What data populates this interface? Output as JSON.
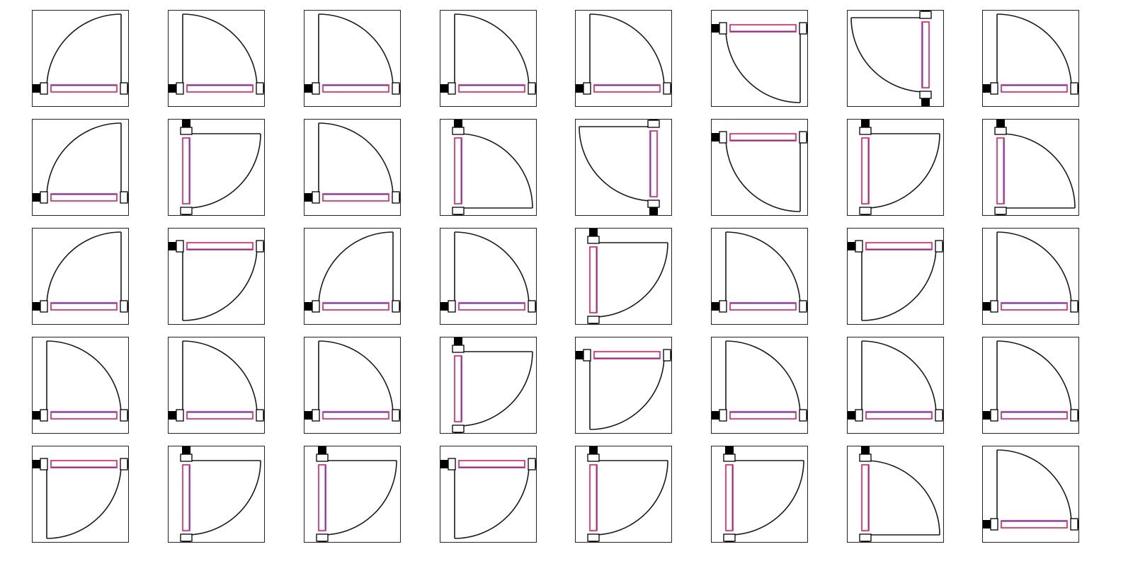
{
  "colors": {
    "background": "#ffffff",
    "frame": "#222222",
    "arc": "#1a1a1a",
    "panel_outer": "#e8185a",
    "panel_inner": "#3a3ad8",
    "jamb_fill": "#ffffff",
    "wall": "#000000"
  },
  "tiles": [
    {
      "icon": "door-swing-icon",
      "panel_edge": "bottom",
      "hinge_side": "right"
    },
    {
      "icon": "door-swing-icon",
      "panel_edge": "bottom",
      "hinge_side": "left"
    },
    {
      "icon": "door-swing-icon",
      "panel_edge": "bottom",
      "hinge_side": "left"
    },
    {
      "icon": "door-swing-icon",
      "panel_edge": "bottom",
      "hinge_side": "left"
    },
    {
      "icon": "door-swing-icon",
      "panel_edge": "bottom",
      "hinge_side": "left"
    },
    {
      "icon": "door-swing-icon",
      "panel_edge": "top",
      "hinge_side": "right"
    },
    {
      "icon": "door-swing-icon",
      "panel_edge": "left",
      "hinge_side": "top"
    },
    {
      "icon": "door-swing-icon",
      "panel_edge": "bottom",
      "hinge_side": "left"
    },
    {
      "icon": "door-swing-icon",
      "panel_edge": "bottom",
      "hinge_side": "right"
    },
    {
      "icon": "door-swing-icon",
      "panel_edge": "right",
      "hinge_side": "top"
    },
    {
      "icon": "door-swing-icon",
      "panel_edge": "bottom",
      "hinge_side": "left"
    },
    {
      "icon": "door-swing-icon",
      "panel_edge": "right",
      "hinge_side": "bottom"
    },
    {
      "icon": "door-swing-icon",
      "panel_edge": "left",
      "hinge_side": "top"
    },
    {
      "icon": "door-swing-icon",
      "panel_edge": "top",
      "hinge_side": "right"
    },
    {
      "icon": "door-swing-icon",
      "panel_edge": "right",
      "hinge_side": "top"
    },
    {
      "icon": "door-swing-icon",
      "panel_edge": "right",
      "hinge_side": "bottom"
    },
    {
      "icon": "door-swing-icon",
      "panel_edge": "bottom",
      "hinge_side": "right"
    },
    {
      "icon": "door-swing-icon",
      "panel_edge": "top",
      "hinge_side": "left"
    },
    {
      "icon": "door-swing-icon",
      "panel_edge": "bottom",
      "hinge_side": "right"
    },
    {
      "icon": "door-swing-icon",
      "panel_edge": "bottom",
      "hinge_side": "left"
    },
    {
      "icon": "door-swing-icon",
      "panel_edge": "right",
      "hinge_side": "top"
    },
    {
      "icon": "door-swing-icon",
      "panel_edge": "bottom",
      "hinge_side": "left"
    },
    {
      "icon": "door-swing-icon",
      "panel_edge": "top",
      "hinge_side": "left"
    },
    {
      "icon": "door-swing-icon",
      "panel_edge": "bottom",
      "hinge_side": "left"
    },
    {
      "icon": "door-swing-icon",
      "panel_edge": "bottom",
      "hinge_side": "left"
    },
    {
      "icon": "door-swing-icon",
      "panel_edge": "bottom",
      "hinge_side": "left"
    },
    {
      "icon": "door-swing-icon",
      "panel_edge": "bottom",
      "hinge_side": "left"
    },
    {
      "icon": "door-swing-icon",
      "panel_edge": "right",
      "hinge_side": "top"
    },
    {
      "icon": "door-swing-icon",
      "panel_edge": "top",
      "hinge_side": "left"
    },
    {
      "icon": "door-swing-icon",
      "panel_edge": "bottom",
      "hinge_side": "left"
    },
    {
      "icon": "door-swing-icon",
      "panel_edge": "bottom",
      "hinge_side": "left"
    },
    {
      "icon": "door-swing-icon",
      "panel_edge": "bottom",
      "hinge_side": "left"
    },
    {
      "icon": "door-swing-icon",
      "panel_edge": "top",
      "hinge_side": "left"
    },
    {
      "icon": "door-swing-icon",
      "panel_edge": "right",
      "hinge_side": "top"
    },
    {
      "icon": "door-swing-icon",
      "panel_edge": "right",
      "hinge_side": "top"
    },
    {
      "icon": "door-swing-icon",
      "panel_edge": "top",
      "hinge_side": "left"
    },
    {
      "icon": "door-swing-icon",
      "panel_edge": "right",
      "hinge_side": "top"
    },
    {
      "icon": "door-swing-icon",
      "panel_edge": "right",
      "hinge_side": "top"
    },
    {
      "icon": "door-swing-icon",
      "panel_edge": "right",
      "hinge_side": "bottom"
    },
    {
      "icon": "door-swing-icon",
      "panel_edge": "bottom",
      "hinge_side": "left"
    }
  ]
}
